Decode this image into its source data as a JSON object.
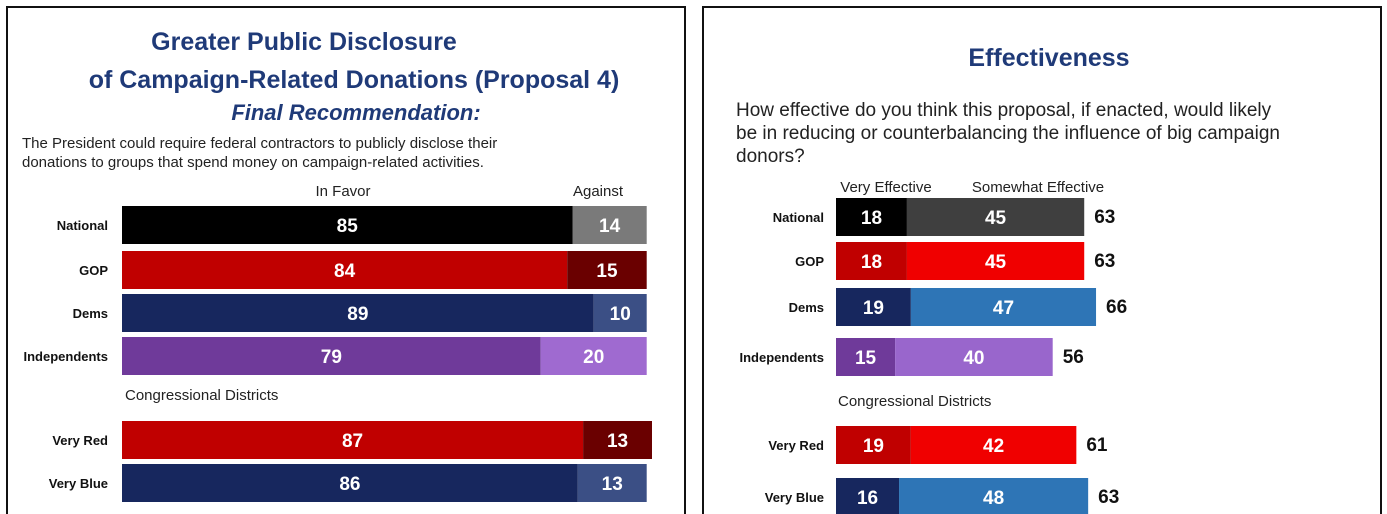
{
  "left": {
    "title_line1": "Greater Public Disclosure",
    "title_line2": "of Campaign-Related Donations (Proposal 4)",
    "subtitle": "Final Recommendation:",
    "description_line1": "The President could require federal contractors to publicly disclose their",
    "description_line2": "donations to groups that spend money on campaign-related activities.",
    "legend_favor": "In Favor",
    "legend_against": "Against",
    "section_label": "Congressional Districts"
  },
  "right": {
    "title": "Effectiveness",
    "question_line1": "How effective do you think this proposal, if enacted, would likely",
    "question_line2": "be in reducing or counterbalancing the influence of big campaign",
    "question_line3": "donors?",
    "legend_very": "Very Effective",
    "legend_somewhat": "Somewhat Effective",
    "section_label": "Congressional Districts"
  },
  "chart_data": [
    {
      "type": "bar",
      "orientation": "horizontal",
      "stacked": true,
      "title": "Greater Public Disclosure of Campaign-Related Donations (Proposal 4)",
      "categories": [
        "National",
        "GOP",
        "Dems",
        "Independents",
        "Very Red",
        "Very Blue"
      ],
      "series": [
        {
          "name": "In Favor",
          "values": [
            85,
            84,
            89,
            79,
            87,
            86
          ]
        },
        {
          "name": "Against",
          "values": [
            14,
            15,
            10,
            20,
            13,
            13
          ]
        }
      ],
      "colors": {
        "National": [
          "#000000",
          "#7a7a7a"
        ],
        "GOP": [
          "#c00000",
          "#6a0000"
        ],
        "Dems": [
          "#17275e",
          "#3b4f85"
        ],
        "Independents": [
          "#6f3a9a",
          "#9f6ad0"
        ],
        "Very Red": [
          "#c00000",
          "#6a0000"
        ],
        "Very Blue": [
          "#17275e",
          "#3b4f85"
        ]
      }
    },
    {
      "type": "bar",
      "orientation": "horizontal",
      "stacked": true,
      "title": "Effectiveness",
      "categories": [
        "National",
        "GOP",
        "Dems",
        "Independents",
        "Very Red",
        "Very Blue"
      ],
      "series": [
        {
          "name": "Very Effective",
          "values": [
            18,
            18,
            19,
            15,
            19,
            16
          ]
        },
        {
          "name": "Somewhat Effective",
          "values": [
            45,
            45,
            47,
            40,
            42,
            48
          ]
        }
      ],
      "totals": [
        63,
        63,
        66,
        56,
        61,
        63
      ],
      "colors": {
        "National": [
          "#000000",
          "#3f3f3f"
        ],
        "GOP": [
          "#c00000",
          "#f00000"
        ],
        "Dems": [
          "#17275e",
          "#2e75b6"
        ],
        "Independents": [
          "#6f3a9a",
          "#9966cc"
        ],
        "Very Red": [
          "#c00000",
          "#f00000"
        ],
        "Very Blue": [
          "#17275e",
          "#2e75b6"
        ]
      }
    }
  ]
}
